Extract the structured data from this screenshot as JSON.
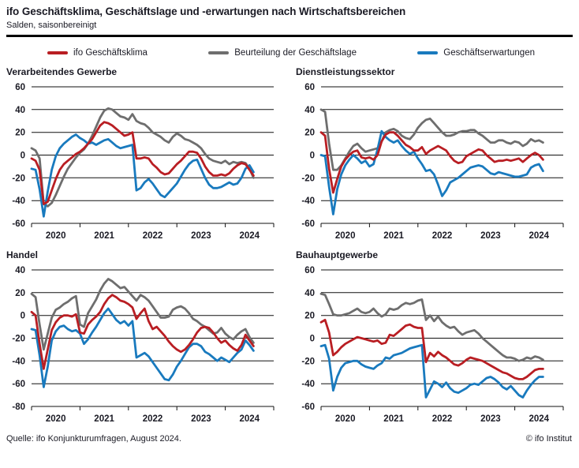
{
  "header": {
    "title": "ifo Geschäftsklima, Geschäftslage und -erwartungen nach Wirtschaftsbereichen",
    "subtitle": "Salden, saisonbereinigt"
  },
  "legend": [
    {
      "label": "ifo Geschäftsklima",
      "color_key": "klima"
    },
    {
      "label": "Beurteilung der Geschäftslage",
      "color_key": "lage"
    },
    {
      "label": "Geschäftserwartungen",
      "color_key": "erwartungen"
    }
  ],
  "colors": {
    "klima": "#b91e23",
    "lage": "#6e6e6e",
    "erwartungen": "#197abe",
    "text": "#1a1a24",
    "grid": "#111111"
  },
  "footer": {
    "source": "Quelle: ifo Konjunkturumfragen, August 2024.",
    "copyright": "© ifo Institut"
  },
  "chart_data": [
    {
      "type": "line",
      "title": "Verarbeitendes Gewerbe",
      "x_start": "2020-01",
      "x_end": "2024-08",
      "frequency": "monthly",
      "xaxis_span_months": 60,
      "xtick_labels": [
        "2020",
        "2021",
        "2022",
        "2023",
        "2024"
      ],
      "ylim": [
        -60,
        60
      ],
      "ytick_step": 20,
      "grid": true,
      "series": [
        {
          "name": "Beurteilung der Geschäftslage",
          "color_key": "lage",
          "values": [
            6,
            4,
            -3,
            -43,
            -45,
            -42,
            -35,
            -27,
            -19,
            -12,
            -7,
            -2,
            2,
            5,
            10,
            17,
            25,
            33,
            39,
            41,
            40,
            37,
            34,
            33,
            31,
            36,
            30,
            28,
            27,
            24,
            20,
            18,
            16,
            13,
            11,
            16,
            19,
            17,
            14,
            13,
            11,
            9,
            6,
            1,
            -3,
            -5,
            -6,
            -7,
            -5,
            -8,
            -6,
            -7,
            -6,
            -7,
            -12,
            -20
          ]
        },
        {
          "name": "Geschäftserwartungen",
          "color_key": "erwartungen",
          "values": [
            -12,
            -13,
            -30,
            -54,
            -32,
            -13,
            -1,
            6,
            10,
            13,
            16,
            18,
            15,
            13,
            10,
            11,
            9,
            11,
            13,
            14,
            11,
            8,
            6,
            7,
            8,
            9,
            -31,
            -29,
            -24,
            -21,
            -25,
            -30,
            -35,
            -37,
            -33,
            -29,
            -25,
            -19,
            -13,
            -8,
            -5,
            -4,
            -12,
            -20,
            -26,
            -29,
            -29,
            -28,
            -26,
            -24,
            -26,
            -25,
            -20,
            -12,
            -9,
            -15
          ]
        },
        {
          "name": "ifo Geschäftsklima",
          "color_key": "klima",
          "values": [
            -3,
            -5,
            -13,
            -43,
            -41,
            -31,
            -21,
            -13,
            -8,
            -5,
            -2,
            1,
            3,
            6,
            10,
            14,
            20,
            26,
            29,
            28,
            26,
            23,
            20,
            17,
            18,
            20,
            -3,
            -3,
            -2,
            -3,
            -8,
            -11,
            -15,
            -17,
            -16,
            -12,
            -8,
            -5,
            -1,
            3,
            3,
            2,
            -3,
            -10,
            -15,
            -18,
            -18,
            -17,
            -18,
            -16,
            -12,
            -9,
            -7,
            -8,
            -13,
            -18
          ]
        }
      ]
    },
    {
      "type": "line",
      "title": "Dienstleistungssektor",
      "x_start": "2020-01",
      "x_end": "2024-08",
      "frequency": "monthly",
      "xaxis_span_months": 60,
      "xtick_labels": [
        "2020",
        "2021",
        "2022",
        "2023",
        "2024"
      ],
      "ylim": [
        -60,
        60
      ],
      "ytick_step": 20,
      "grid": true,
      "series": [
        {
          "name": "Beurteilung der Geschäftslage",
          "color_key": "lage",
          "values": [
            40,
            38,
            10,
            -13,
            -13,
            -9,
            -3,
            3,
            8,
            10,
            6,
            3,
            4,
            5,
            6,
            12,
            20,
            22,
            23,
            21,
            17,
            15,
            14,
            18,
            24,
            28,
            31,
            32,
            28,
            24,
            20,
            17,
            17,
            18,
            20,
            21,
            21,
            22,
            22,
            19,
            17,
            14,
            11,
            11,
            13,
            13,
            11,
            10,
            12,
            11,
            8,
            10,
            14,
            12,
            13,
            11
          ]
        },
        {
          "name": "Geschäftserwartungen",
          "color_key": "erwartungen",
          "values": [
            0,
            -1,
            -28,
            -52,
            -30,
            -17,
            -9,
            -4,
            0,
            -3,
            -7,
            -5,
            -10,
            -8,
            5,
            21,
            16,
            13,
            11,
            13,
            8,
            4,
            1,
            3,
            -3,
            -8,
            -14,
            -13,
            -17,
            -26,
            -36,
            -31,
            -24,
            -22,
            -20,
            -17,
            -14,
            -11,
            -10,
            -9,
            -10,
            -13,
            -16,
            -17,
            -15,
            -16,
            -17,
            -18,
            -19,
            -19,
            -18,
            -17,
            -11,
            -9,
            -8,
            -14
          ]
        },
        {
          "name": "ifo Geschäftsklima",
          "color_key": "klima",
          "values": [
            20,
            17,
            -12,
            -33,
            -21,
            -10,
            -4,
            0,
            3,
            4,
            -2,
            -3,
            -2,
            -4,
            0,
            12,
            18,
            20,
            20,
            17,
            13,
            9,
            7,
            4,
            4,
            7,
            1,
            4,
            6,
            8,
            6,
            4,
            -1,
            -5,
            -7,
            -6,
            -1,
            1,
            3,
            5,
            4,
            0,
            -3,
            -6,
            -5,
            -5,
            -4,
            -5,
            -4,
            -3,
            -6,
            -3,
            0,
            2,
            0,
            -4
          ]
        }
      ]
    },
    {
      "type": "line",
      "title": "Handel",
      "x_start": "2020-01",
      "x_end": "2024-08",
      "frequency": "monthly",
      "xaxis_span_months": 60,
      "xtick_labels": [
        "2020",
        "2021",
        "2022",
        "2023",
        "2024"
      ],
      "ylim": [
        -80,
        40
      ],
      "ytick_step": 20,
      "grid": true,
      "series": [
        {
          "name": "Beurteilung der Geschäftslage",
          "color_key": "lage",
          "values": [
            19,
            16,
            -8,
            -30,
            -16,
            -2,
            5,
            7,
            10,
            12,
            15,
            17,
            -8,
            -10,
            2,
            8,
            14,
            22,
            28,
            32,
            30,
            27,
            24,
            25,
            21,
            17,
            13,
            18,
            16,
            13,
            8,
            3,
            -2,
            -2,
            -1,
            5,
            7,
            8,
            6,
            2,
            -3,
            -5,
            -8,
            -10,
            -13,
            -16,
            -15,
            -11,
            -16,
            -19,
            -21,
            -17,
            -14,
            -12,
            -19,
            -24
          ]
        },
        {
          "name": "Geschäftserwartungen",
          "color_key": "erwartungen",
          "values": [
            -12,
            -13,
            -35,
            -63,
            -45,
            -22,
            -14,
            -10,
            -9,
            -12,
            -14,
            -13,
            -16,
            -25,
            -21,
            -15,
            -10,
            -4,
            2,
            6,
            1,
            -4,
            -7,
            -5,
            -9,
            -5,
            -37,
            -35,
            -33,
            -36,
            -41,
            -46,
            -51,
            -56,
            -57,
            -52,
            -45,
            -40,
            -34,
            -28,
            -25,
            -25,
            -27,
            -32,
            -34,
            -37,
            -40,
            -37,
            -39,
            -41,
            -37,
            -33,
            -30,
            -22,
            -26,
            -31
          ]
        },
        {
          "name": "ifo Geschäftsklima",
          "color_key": "klima",
          "values": [
            3,
            0,
            -25,
            -47,
            -30,
            -13,
            -6,
            -2,
            0,
            0,
            -1,
            1,
            -15,
            -16,
            -8,
            -4,
            -1,
            3,
            10,
            15,
            18,
            16,
            13,
            12,
            10,
            7,
            -3,
            2,
            6,
            -5,
            -12,
            -10,
            -14,
            -18,
            -23,
            -27,
            -30,
            -32,
            -30,
            -26,
            -21,
            -15,
            -11,
            -10,
            -11,
            -15,
            -20,
            -24,
            -22,
            -26,
            -29,
            -31,
            -26,
            -17,
            -22,
            -27
          ]
        }
      ]
    },
    {
      "type": "line",
      "title": "Bauhauptgewerbe",
      "x_start": "2020-01",
      "x_end": "2024-08",
      "frequency": "monthly",
      "xaxis_span_months": 60,
      "xtick_labels": [
        "2020",
        "2021",
        "2022",
        "2023",
        "2024"
      ],
      "ylim": [
        -60,
        60
      ],
      "ytick_step": 20,
      "grid": true,
      "series": [
        {
          "name": "Beurteilung der Geschäftslage",
          "color_key": "lage",
          "values": [
            39,
            38,
            30,
            21,
            20,
            20,
            21,
            22,
            24,
            26,
            23,
            22,
            23,
            26,
            22,
            19,
            21,
            26,
            25,
            26,
            29,
            31,
            30,
            31,
            33,
            34,
            16,
            20,
            15,
            19,
            14,
            11,
            9,
            10,
            6,
            3,
            5,
            6,
            7,
            4,
            0,
            -3,
            -6,
            -9,
            -12,
            -15,
            -17,
            -17,
            -18,
            -20,
            -19,
            -17,
            -18,
            -16,
            -17,
            -19
          ]
        },
        {
          "name": "Geschäftserwartungen",
          "color_key": "erwartungen",
          "values": [
            -7,
            -6,
            -18,
            -46,
            -34,
            -26,
            -22,
            -21,
            -20,
            -20,
            -23,
            -25,
            -26,
            -27,
            -24,
            -22,
            -17,
            -18,
            -15,
            -14,
            -13,
            -11,
            -9,
            -8,
            -7,
            -6,
            -52,
            -45,
            -38,
            -40,
            -43,
            -39,
            -44,
            -47,
            -48,
            -46,
            -44,
            -41,
            -40,
            -41,
            -38,
            -35,
            -34,
            -36,
            -39,
            -43,
            -45,
            -42,
            -46,
            -50,
            -52,
            -46,
            -41,
            -37,
            -34,
            -34
          ]
        },
        {
          "name": "ifo Geschäftsklima",
          "color_key": "klima",
          "values": [
            14,
            16,
            5,
            -15,
            -12,
            -8,
            -5,
            -3,
            -1,
            1,
            0,
            -1,
            -2,
            -3,
            -2,
            -5,
            -4,
            3,
            2,
            5,
            8,
            11,
            12,
            10,
            9,
            9,
            -21,
            -13,
            -16,
            -12,
            -15,
            -17,
            -20,
            -23,
            -24,
            -22,
            -19,
            -17,
            -18,
            -19,
            -20,
            -22,
            -24,
            -26,
            -28,
            -30,
            -31,
            -33,
            -35,
            -36,
            -36,
            -34,
            -31,
            -28,
            -27,
            -27
          ]
        }
      ]
    }
  ]
}
